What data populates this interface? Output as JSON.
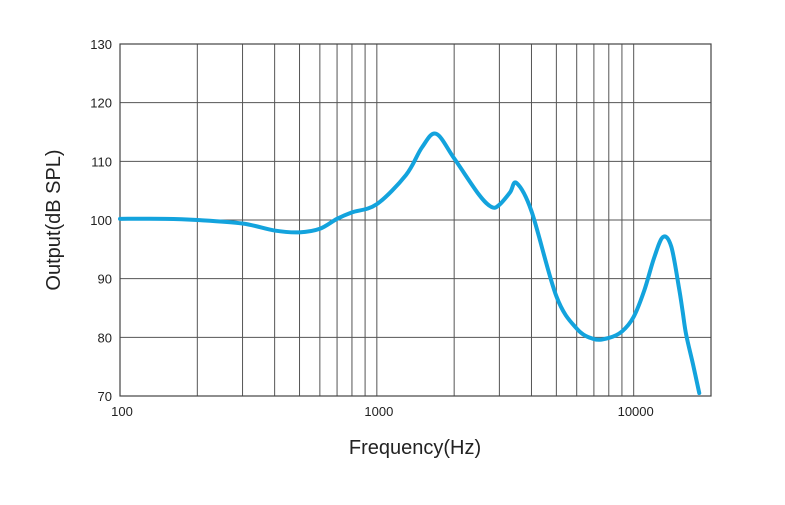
{
  "chart_data": {
    "type": "line",
    "title": "",
    "xlabel": "Frequency(Hz)",
    "ylabel": "Output(dB SPL)",
    "x_scale": "log",
    "xlim": [
      100,
      20000
    ],
    "ylim": [
      70,
      130
    ],
    "grid": true,
    "x_tick_labels": [
      {
        "value": 100,
        "label": "100"
      },
      {
        "value": 1000,
        "label": "1000"
      },
      {
        "value": 10000,
        "label": "10000"
      }
    ],
    "y_ticks": [
      70,
      80,
      90,
      100,
      110,
      120,
      130
    ],
    "series": [
      {
        "color": "#13a3dd",
        "x": [
          100,
          150,
          200,
          300,
          400,
          500,
          600,
          700,
          800,
          1000,
          1300,
          1500,
          1700,
          2000,
          2500,
          2800,
          3000,
          3300,
          3500,
          4000,
          5000,
          6000,
          7000,
          8000,
          9000,
          10000,
          11000,
          12000,
          13000,
          14000,
          15000,
          15500,
          16000,
          17000,
          18000
        ],
        "y": [
          100.2,
          100.2,
          100.0,
          99.4,
          98.2,
          97.9,
          98.5,
          100.2,
          101.3,
          102.7,
          107.7,
          112.4,
          114.7,
          110.5,
          104.3,
          102.2,
          102.6,
          104.7,
          106.3,
          101.5,
          87.0,
          81.5,
          79.7,
          79.9,
          81.0,
          83.5,
          88.0,
          93.5,
          97.1,
          95.5,
          88.5,
          84.5,
          80.5,
          75.5,
          70.5
        ]
      }
    ]
  }
}
